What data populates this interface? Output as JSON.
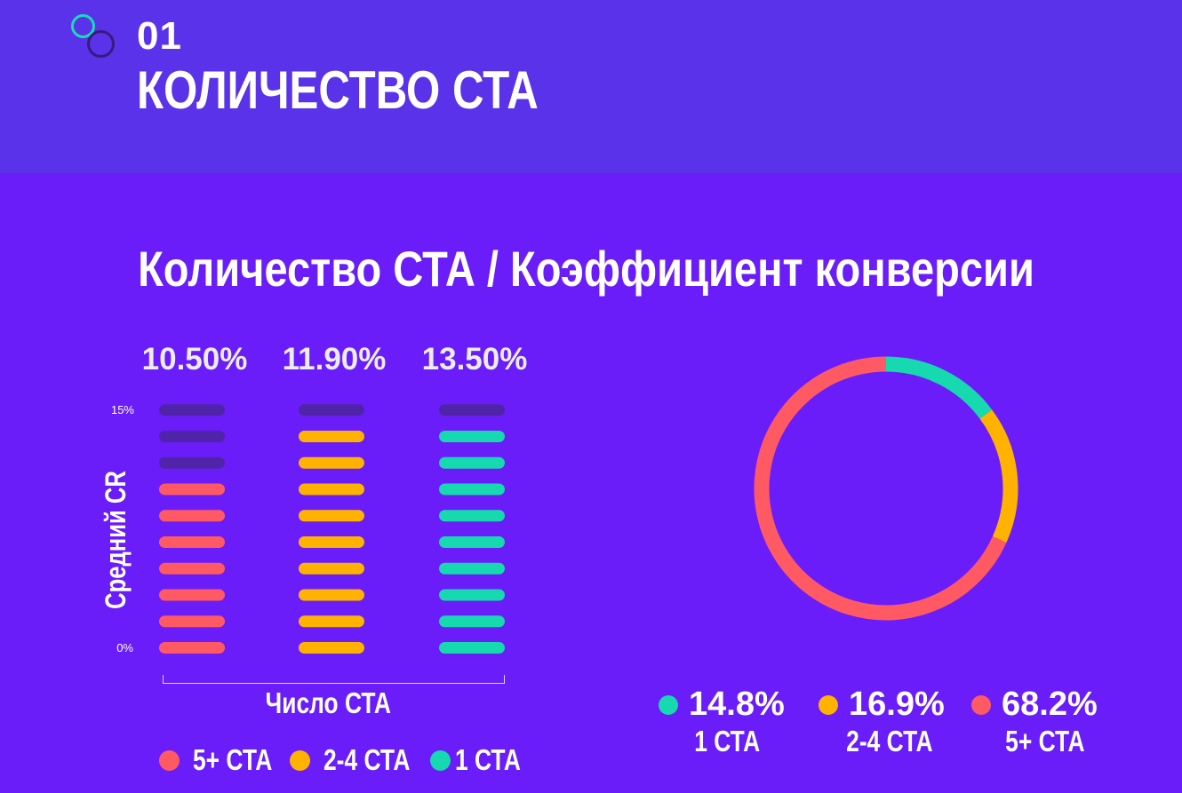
{
  "header": {
    "number": "01",
    "title": "КОЛИЧЕСТВО СТА"
  },
  "colors": {
    "five_plus": "#ff5a63",
    "two_four": "#ffb300",
    "one": "#16d9b0",
    "empty": "#4f24a8"
  },
  "chart_data": [
    {
      "type": "bar",
      "title": "Количество СТА / Коэффициент конверсии",
      "xlabel": "Число СТА",
      "ylabel": "Средний CR",
      "yticks": [
        "15%",
        "0%"
      ],
      "ylim": [
        0,
        15
      ],
      "categories": [
        "5+ СТА",
        "2-4 СТА",
        "1 СТА"
      ],
      "values": [
        10.5,
        11.9,
        13.5
      ],
      "value_labels": [
        "10.50%",
        "11.90%",
        "13.50%"
      ],
      "units_total": 10,
      "units_filled": [
        7,
        9,
        9
      ],
      "legend": [
        {
          "label": "5+ СТА",
          "color": "#ff5a63"
        },
        {
          "label": "2-4 СТА",
          "color": "#ffb300"
        },
        {
          "label": "1 СТА",
          "color": "#16d9b0"
        }
      ]
    },
    {
      "type": "pie",
      "style": "donut",
      "slices": [
        {
          "label": "1 СТА",
          "value": 14.8,
          "value_label": "14.8%",
          "color": "#16d9b0"
        },
        {
          "label": "2-4 СТА",
          "value": 16.9,
          "value_label": "16.9%",
          "color": "#ffb300"
        },
        {
          "label": "5+ СТА",
          "value": 68.2,
          "value_label": "68.2%",
          "color": "#ff5a63"
        }
      ]
    }
  ]
}
